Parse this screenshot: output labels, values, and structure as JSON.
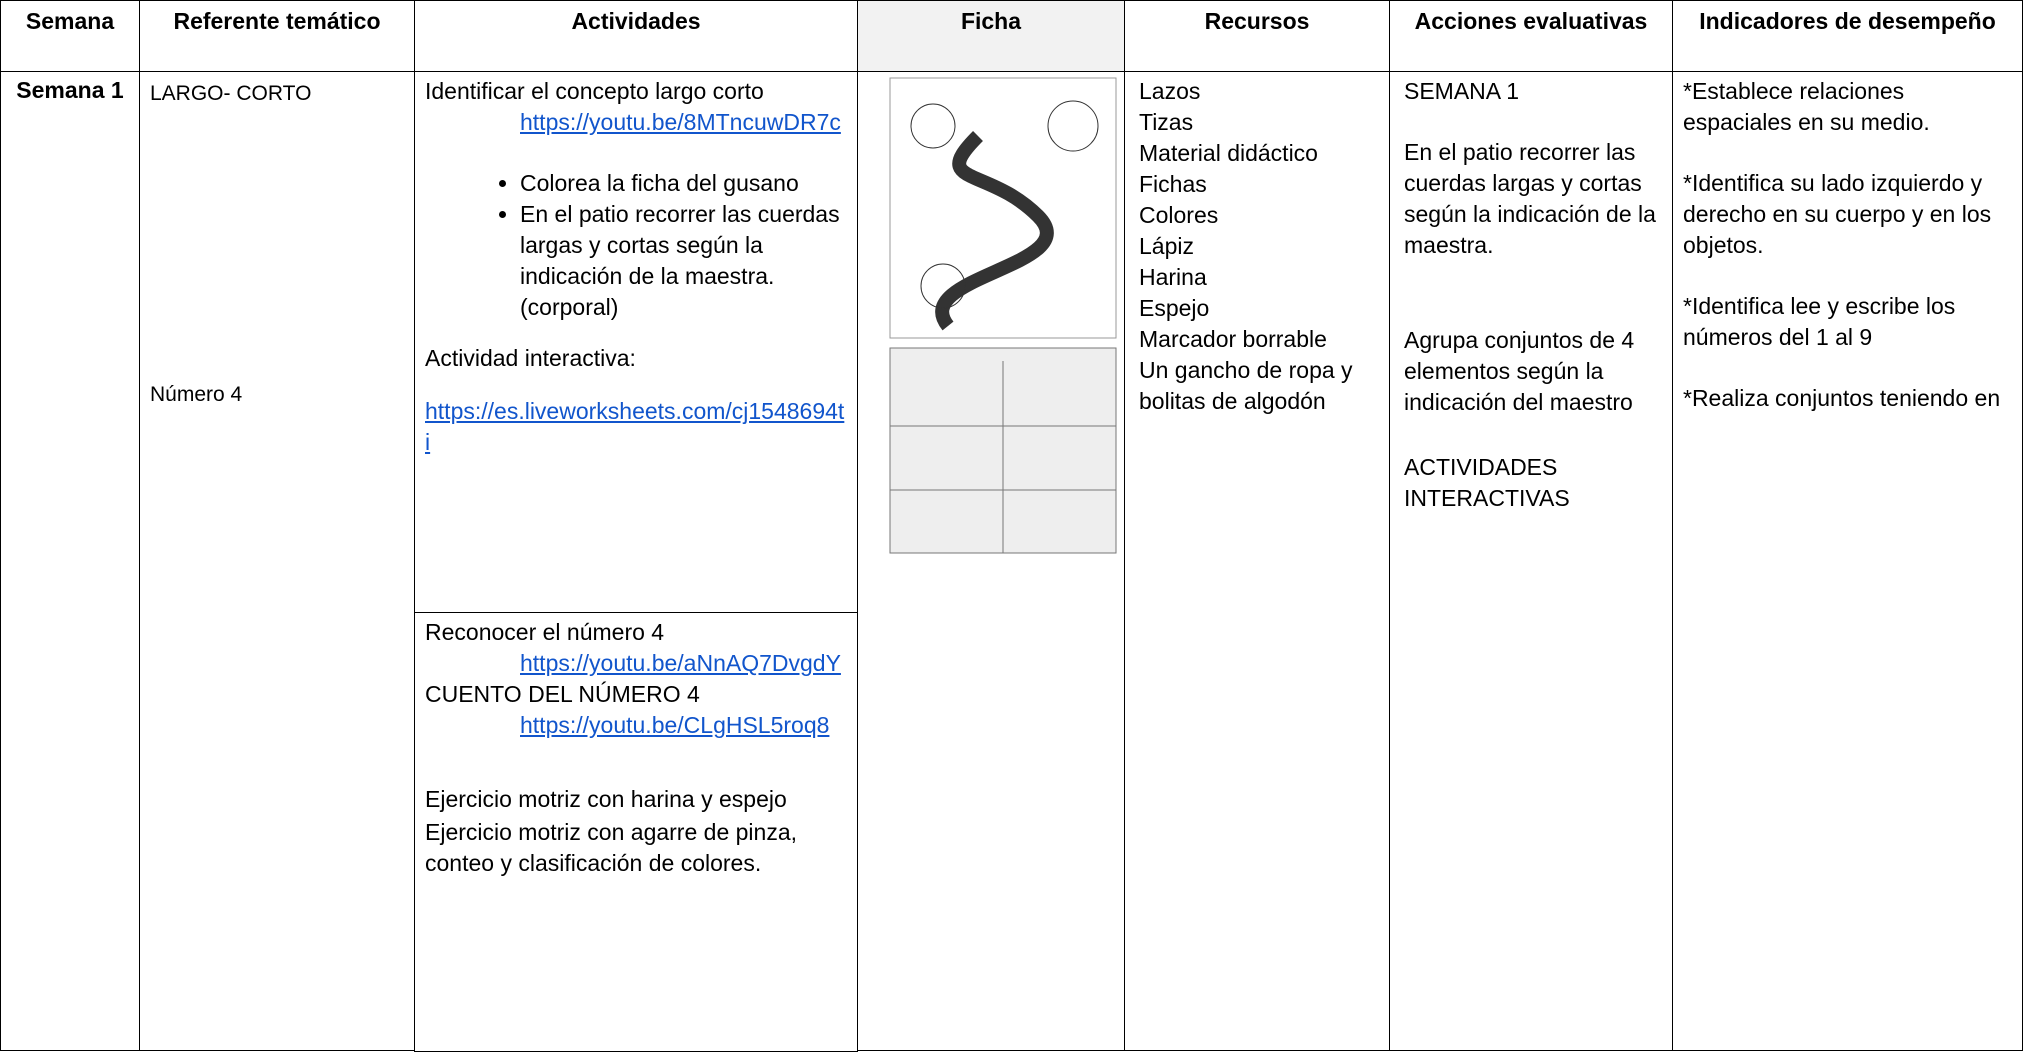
{
  "table": {
    "header": [
      "Semana",
      "Referente temático",
      "Actividades",
      "Ficha",
      "Recursos",
      "Acciones evaluativas",
      "Indicadores de desempeño"
    ],
    "semana": "Semana 1",
    "referente": [
      "LARGO- CORTO",
      "Número 4"
    ],
    "actividades_1": {
      "title": "Identificar el concepto largo corto",
      "link": "https://youtu.be/8MTncuwDR7c",
      "bullets": [
        "Colorea la ficha del gusano",
        "En el patio recorrer las cuerdas largas y cortas según la indicación de la maestra. (corporal)"
      ],
      "interactive": "Actividad interactiva:",
      "interactive_link": "https://es.liveworksheets.com/cj1548694ti"
    },
    "actividades_2": {
      "title": "Reconocer el número 4",
      "link": "https://youtu.be/aNnAQ7DvgdY",
      "story": "CUENTO DEL NÚMERO 4",
      "story_link": "https://youtu.be/CLgHSL5roq8",
      "exercise_1": "Ejercicio motriz con harina y espejo",
      "exercise_2": "Ejercicio motriz con agarre de pinza, conteo y clasificación de colores."
    },
    "recursos": [
      "Lazos",
      "Tizas",
      "Material didáctico",
      "Fichas",
      "Colores",
      "Lápiz",
      "Harina",
      "Espejo",
      "Marcador borrable",
      "Un gancho de ropa y bolitas de algodón"
    ],
    "acciones": [
      "SEMANA 1",
      "En el patio recorrer las cuerdas largas y cortas según la indicación de la maestra.",
      "Agrupa conjuntos de 4 elementos según la indicación del maestro",
      "ACTIVIDADES INTERACTIVAS"
    ],
    "indicadores": [
      "*Establece relaciones espaciales en su medio.",
      "*Identifica su lado izquierdo y derecho en su cuerpo y en los objetos.",
      "*Identifica lee y escribe los números del 1 al 9",
      "*Realiza conjuntos teniendo en"
    ]
  }
}
